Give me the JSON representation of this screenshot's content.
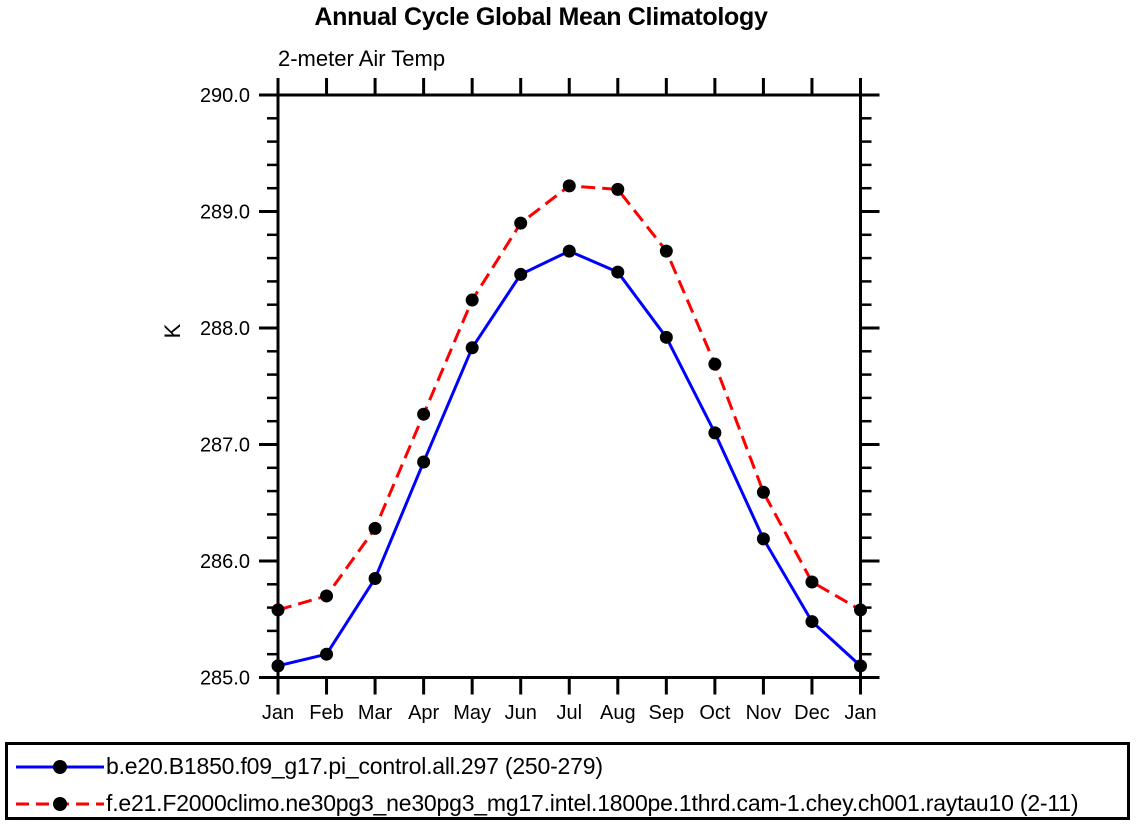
{
  "chart_data": {
    "type": "line",
    "title": "Annual Cycle Global Mean Climatology",
    "subtitle": "2-meter Air Temp",
    "ylabel": "K",
    "xlabel": "",
    "categories": [
      "Jan",
      "Feb",
      "Mar",
      "Apr",
      "May",
      "Jun",
      "Jul",
      "Aug",
      "Sep",
      "Oct",
      "Nov",
      "Dec",
      "Jan"
    ],
    "ylim": [
      285.0,
      290.0
    ],
    "yticks": {
      "values": [
        285.0,
        286.0,
        287.0,
        288.0,
        289.0,
        290.0
      ],
      "labels": [
        "285.0",
        "286.0",
        "287.0",
        "288.0",
        "289.0",
        "290.0"
      ]
    },
    "yminor_step": 0.2,
    "grid": false,
    "legend_position": "bottom-left-box",
    "colors": {
      "axis": "#000000",
      "marker": "#000000",
      "background": "#ffffff"
    },
    "series": [
      {
        "name": "b.e20.B1850.f09_g17.pi_control.all.297 (250-279)",
        "color": "#0000ff",
        "line_style": "solid",
        "marker": "filled-circle",
        "values": [
          285.1,
          285.2,
          285.85,
          286.85,
          287.83,
          288.46,
          288.66,
          288.48,
          287.92,
          287.1,
          286.19,
          285.48,
          285.1
        ]
      },
      {
        "name": "f.e21.F2000climo.ne30pg3_ne30pg3_mg17.intel.1800pe.1thrd.cam-1.chey.ch001.raytau10 (2-11)",
        "color": "#ff0000",
        "line_style": "dashed",
        "marker": "filled-circle",
        "values": [
          285.58,
          285.7,
          286.28,
          287.26,
          288.24,
          288.9,
          289.22,
          289.19,
          288.66,
          287.69,
          286.59,
          285.82,
          285.58
        ]
      }
    ]
  }
}
